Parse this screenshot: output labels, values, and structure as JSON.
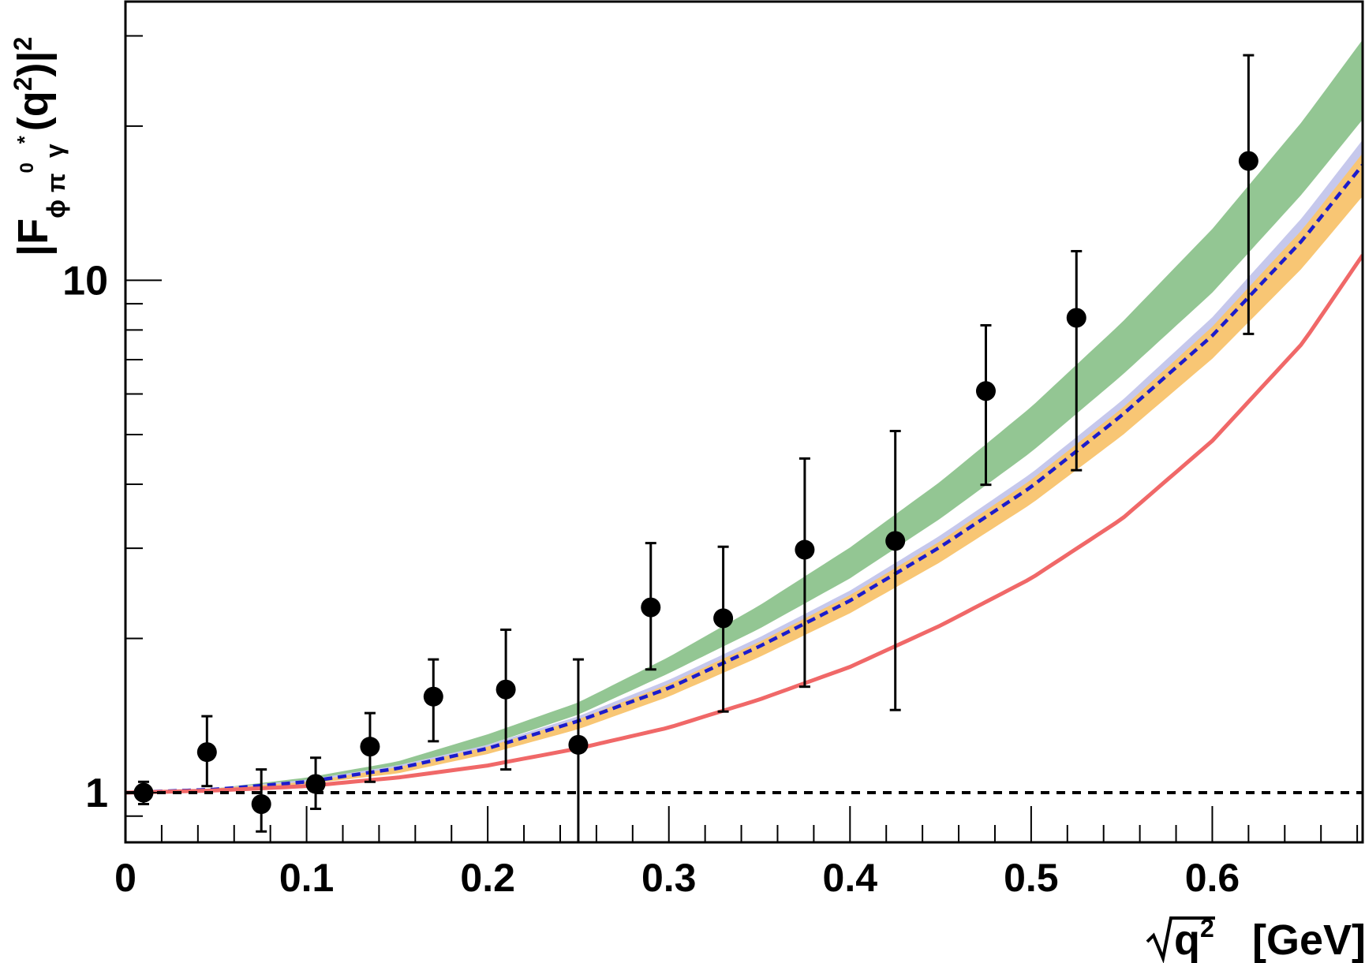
{
  "chart_data": {
    "type": "scatter",
    "title": "",
    "xlabel": "[GeV]",
    "xlabel_var": "q",
    "xlabel_sup": "2",
    "ylabel": {
      "lead": "|F",
      "sub1": "ϕ π",
      "sup1": "0",
      "sub2": "γ",
      "sup2": "*",
      "mid": "(q",
      "sup3": "2",
      "tail": ")|",
      "sup4": "2"
    },
    "xlim": [
      0,
      0.683
    ],
    "ylim": [
      0.8,
      35
    ],
    "y_scale": "log",
    "grid": false,
    "x_ticks": [
      0,
      0.1,
      0.2,
      0.3,
      0.4,
      0.5,
      0.6
    ],
    "x_tick_labels": [
      "0",
      "0.1",
      "0.2",
      "0.3",
      "0.4",
      "0.5",
      "0.6"
    ],
    "y_tick_labels": [
      {
        "value": 1,
        "label": "1"
      },
      {
        "value": 10,
        "label": "10"
      }
    ],
    "colors": {
      "data": "#000000",
      "green_band": "#93c693",
      "lavender_band": "#c6c8ec",
      "orange_band": "#f8c674",
      "blue_dashed": "#1c1ccc",
      "red_line": "#f06868",
      "reference": "#000000"
    },
    "series": [
      {
        "kind": "points",
        "x": [
          0.01,
          0.045,
          0.075,
          0.105,
          0.135,
          0.17,
          0.21,
          0.25,
          0.29,
          0.33,
          0.375,
          0.425,
          0.475,
          0.525,
          0.62
        ],
        "y": [
          1.0,
          1.2,
          0.95,
          1.04,
          1.23,
          1.54,
          1.59,
          1.24,
          2.3,
          2.19,
          2.98,
          3.1,
          6.08,
          8.45,
          17.1
        ],
        "ylo": [
          0.95,
          1.03,
          0.84,
          0.93,
          1.05,
          1.26,
          1.11,
          0.8,
          1.74,
          1.44,
          1.61,
          1.45,
          3.99,
          4.26,
          7.86
        ],
        "yhi": [
          1.05,
          1.41,
          1.11,
          1.17,
          1.43,
          1.82,
          2.08,
          1.82,
          3.07,
          3.02,
          4.49,
          5.08,
          8.17,
          11.4,
          27.5
        ]
      },
      {
        "kind": "band",
        "x": [
          0.0,
          0.05,
          0.1,
          0.15,
          0.2,
          0.25,
          0.3,
          0.35,
          0.4,
          0.45,
          0.5,
          0.55,
          0.6,
          0.65,
          0.683
        ],
        "lo": [
          1.0,
          1.01,
          1.04,
          1.11,
          1.24,
          1.42,
          1.71,
          2.09,
          2.62,
          3.43,
          4.62,
          6.52,
          9.46,
          14.8,
          20.6
        ],
        "hi": [
          1.0,
          1.02,
          1.07,
          1.15,
          1.3,
          1.5,
          1.84,
          2.32,
          3.01,
          4.05,
          5.66,
          8.27,
          12.6,
          20.5,
          29.5
        ]
      },
      {
        "kind": "band",
        "x": [
          0.0,
          0.05,
          0.1,
          0.15,
          0.2,
          0.25,
          0.3,
          0.35,
          0.4,
          0.45,
          0.5,
          0.55,
          0.6,
          0.65,
          0.683
        ],
        "lo": [
          1.0,
          1.01,
          1.04,
          1.1,
          1.2,
          1.35,
          1.56,
          1.87,
          2.29,
          2.88,
          3.75,
          5.1,
          7.23,
          11.0,
          15.2
        ],
        "hi": [
          1.0,
          1.02,
          1.06,
          1.13,
          1.24,
          1.41,
          1.66,
          2.01,
          2.48,
          3.18,
          4.2,
          5.82,
          8.47,
          13.3,
          18.8
        ]
      },
      {
        "kind": "band",
        "x": [
          0.0,
          0.05,
          0.1,
          0.15,
          0.2,
          0.25,
          0.3,
          0.35,
          0.4,
          0.45,
          0.5,
          0.55,
          0.6,
          0.65,
          0.683
        ],
        "lo": [
          1.0,
          1.01,
          1.04,
          1.09,
          1.19,
          1.33,
          1.54,
          1.84,
          2.24,
          2.82,
          3.66,
          4.97,
          7.03,
          10.6,
          14.6
        ],
        "hi": [
          1.0,
          1.02,
          1.05,
          1.12,
          1.23,
          1.39,
          1.63,
          1.97,
          2.43,
          3.1,
          4.08,
          5.62,
          8.12,
          12.6,
          17.7
        ]
      },
      {
        "kind": "dashed_line",
        "x": [
          0.0,
          0.05,
          0.1,
          0.15,
          0.2,
          0.25,
          0.3,
          0.35,
          0.4,
          0.45,
          0.5,
          0.55,
          0.6,
          0.65,
          0.683
        ],
        "y": [
          1.0,
          1.015,
          1.05,
          1.115,
          1.22,
          1.38,
          1.6,
          1.93,
          2.37,
          3.02,
          3.95,
          5.45,
          7.8,
          12.0,
          16.8
        ]
      },
      {
        "kind": "line",
        "x": [
          0.0,
          0.05,
          0.1,
          0.15,
          0.2,
          0.25,
          0.3,
          0.35,
          0.4,
          0.45,
          0.5,
          0.55,
          0.6,
          0.65,
          0.683
        ],
        "y": [
          1.0,
          1.01,
          1.03,
          1.07,
          1.13,
          1.22,
          1.34,
          1.52,
          1.76,
          2.12,
          2.62,
          3.42,
          4.86,
          7.55,
          11.2
        ]
      },
      {
        "kind": "reference_line",
        "y": 1.0
      }
    ]
  }
}
